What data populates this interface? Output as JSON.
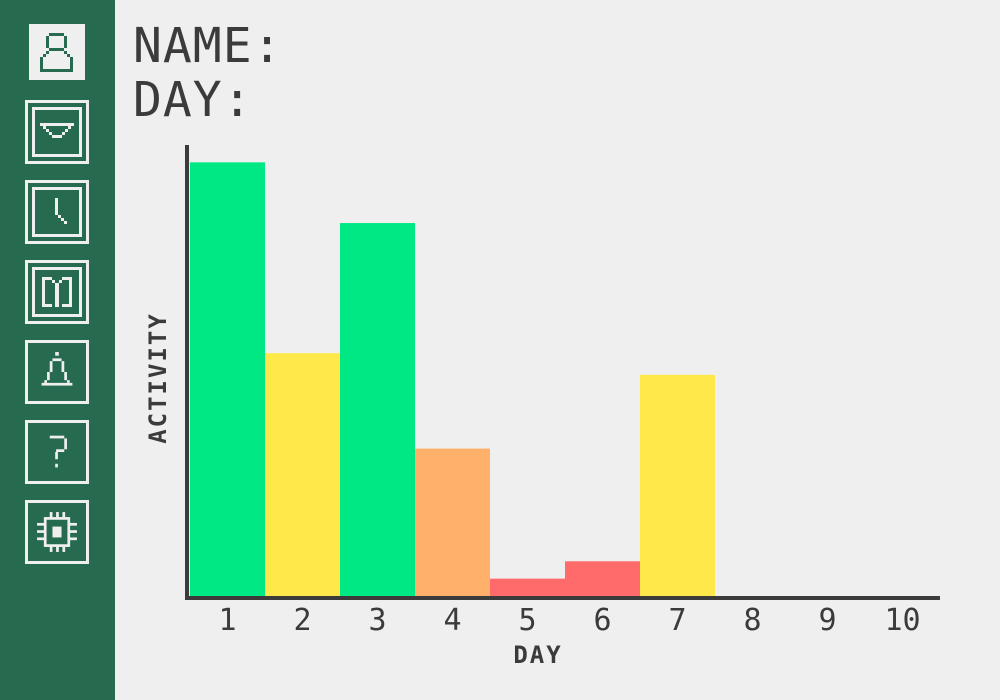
{
  "sidebar": {
    "items": [
      {
        "icon": "person-icon",
        "name": "sidebar-item-profile"
      },
      {
        "icon": "mail-icon",
        "name": "sidebar-item-mail"
      },
      {
        "icon": "clock-icon",
        "name": "sidebar-item-clock"
      },
      {
        "icon": "book-icon",
        "name": "sidebar-item-book"
      },
      {
        "icon": "bell-icon",
        "name": "sidebar-item-bell"
      },
      {
        "icon": "help-icon",
        "name": "sidebar-item-help"
      },
      {
        "icon": "chip-icon",
        "name": "sidebar-item-chip"
      }
    ]
  },
  "header": {
    "name_label": "NAME:",
    "day_label": "DAY:"
  },
  "colors": {
    "sidebar": "#266a50",
    "background": "#efefef",
    "high": "#00e884",
    "medium": "#ffe94a",
    "low": "#ffb16b",
    "very_low": "#ff6a6a",
    "axis": "#3b3b3b"
  },
  "chart_data": {
    "type": "bar",
    "xlabel": "DAY",
    "ylabel": "ACTIVITY",
    "categories": [
      "1",
      "2",
      "3",
      "4",
      "5",
      "6",
      "7",
      "8",
      "9",
      "10"
    ],
    "values": [
      100,
      56,
      86,
      34,
      4,
      8,
      51,
      0,
      0,
      0
    ],
    "bar_colors": [
      "#00e884",
      "#ffe94a",
      "#00e884",
      "#ffb16b",
      "#ff6a6a",
      "#ff6a6a",
      "#ffe94a",
      "#00e884",
      "#00e884",
      "#00e884"
    ],
    "ylim": [
      0,
      104
    ],
    "grid": false,
    "legend": "none"
  }
}
